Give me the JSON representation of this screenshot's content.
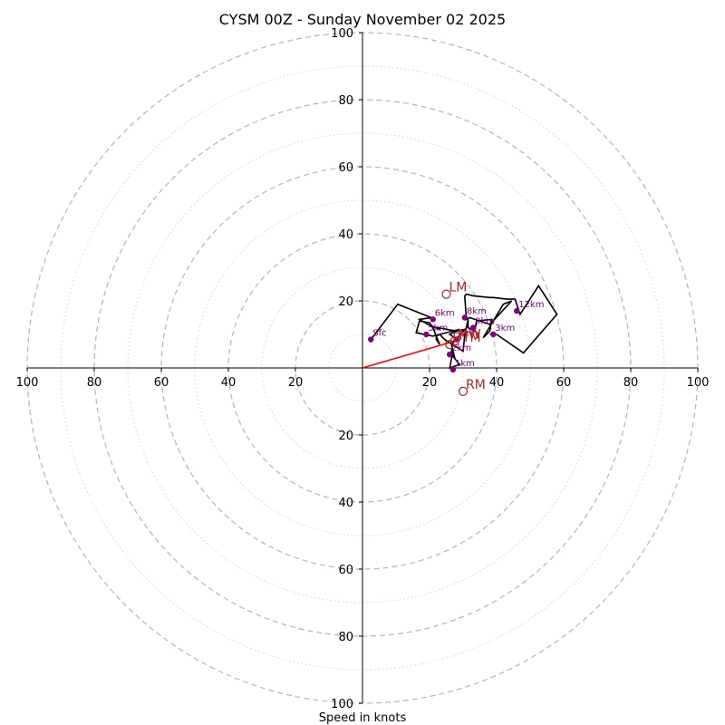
{
  "chart_data": {
    "type": "hodograph",
    "title": "CYSM 00Z - Sunday November 02 2025",
    "xlabel": "Speed in knots",
    "ylabel": "",
    "xlim": [
      -100,
      100
    ],
    "ylim": [
      -100,
      100
    ],
    "grid": true,
    "ring_speeds": [
      10,
      20,
      30,
      40,
      50,
      60,
      70,
      80,
      90,
      100
    ],
    "ticks": {
      "x_left": [
        {
          "value": -100,
          "label": "100"
        },
        {
          "value": -80,
          "label": "80"
        },
        {
          "value": -60,
          "label": "60"
        },
        {
          "value": -40,
          "label": "40"
        },
        {
          "value": -20,
          "label": "20"
        }
      ],
      "x_right": [
        {
          "value": 20,
          "label": "20"
        },
        {
          "value": 40,
          "label": "40"
        },
        {
          "value": 60,
          "label": "60"
        },
        {
          "value": 80,
          "label": "80"
        },
        {
          "value": 100,
          "label": "100"
        }
      ],
      "y_top": [
        {
          "value": 20,
          "label": "20"
        },
        {
          "value": 40,
          "label": "40"
        },
        {
          "value": 60,
          "label": "60"
        },
        {
          "value": 80,
          "label": "80"
        },
        {
          "value": 100,
          "label": "100"
        }
      ],
      "y_bottom": [
        {
          "value": -20,
          "label": "20"
        },
        {
          "value": -40,
          "label": "40"
        },
        {
          "value": -60,
          "label": "60"
        },
        {
          "value": -80,
          "label": "80"
        },
        {
          "value": -100,
          "label": "100"
        }
      ]
    },
    "trace": {
      "name": "wind profile",
      "color": "#000000",
      "u": [
        2.5,
        10.5,
        20.5,
        17,
        19.5,
        23,
        22.5,
        28,
        30.5,
        26.5,
        27.5,
        26,
        27,
        26,
        29,
        26.5,
        26.5,
        27.5,
        26,
        29,
        23,
        22,
        22,
        23,
        21,
        20,
        17,
        16,
        21,
        23,
        24.5,
        30,
        30.5,
        31.5,
        31.5,
        33.5,
        34,
        38.5,
        38,
        36,
        42,
        44.5,
        38,
        35,
        32,
        31,
        30.5,
        30.5,
        31,
        33,
        38,
        39,
        43,
        45.5,
        46,
        47,
        52.5,
        58,
        48,
        40,
        38
      ],
      "v": [
        8.5,
        19,
        15,
        14.5,
        13,
        11.5,
        12,
        11,
        11.5,
        7,
        3,
        4.5,
        5,
        0,
        1,
        4,
        5,
        9,
        10,
        11.5,
        10,
        9.5,
        8.5,
        7,
        12,
        13.5,
        14,
        10.5,
        9.5,
        10,
        8.5,
        5,
        10,
        14.5,
        12,
        11,
        14,
        14.5,
        11,
        9,
        19,
        20,
        13,
        14,
        15,
        14.5,
        21,
        21.5,
        22,
        21.5,
        21,
        21,
        20.5,
        20.5,
        19,
        16,
        24.5,
        16,
        4.5,
        10,
        10
      ]
    },
    "height_markers": {
      "color": "#800080",
      "points": [
        {
          "label": "Sfc",
          "u": 2.5,
          "v": 8.5
        },
        {
          "label": "1km",
          "u": 27,
          "v": -0.5
        },
        {
          "label": "2km",
          "u": 26,
          "v": 4
        },
        {
          "label": "3km",
          "u": 39,
          "v": 10
        },
        {
          "label": "4km",
          "u": 28,
          "v": 8.5
        },
        {
          "label": "5km",
          "u": 19,
          "v": 10
        },
        {
          "label": "6km",
          "u": 21,
          "v": 14.5
        },
        {
          "label": "8km",
          "u": 30.5,
          "v": 15
        },
        {
          "label": "9km",
          "u": 33,
          "v": 12
        },
        {
          "label": "12km",
          "u": 46,
          "v": 17
        }
      ]
    },
    "storm_motion": {
      "color": "#b22222",
      "points": [
        {
          "label": "LM",
          "u": 25,
          "v": 22
        },
        {
          "label": "RM",
          "u": 30,
          "v": -7
        },
        {
          "label": "MW",
          "u": 27.5,
          "v": 8
        },
        {
          "label": "DTM",
          "u": 26,
          "v": 7
        }
      ]
    },
    "shear_vector": {
      "color": "#ff0000",
      "from": [
        0,
        0
      ],
      "to": [
        27.5,
        8
      ]
    }
  }
}
